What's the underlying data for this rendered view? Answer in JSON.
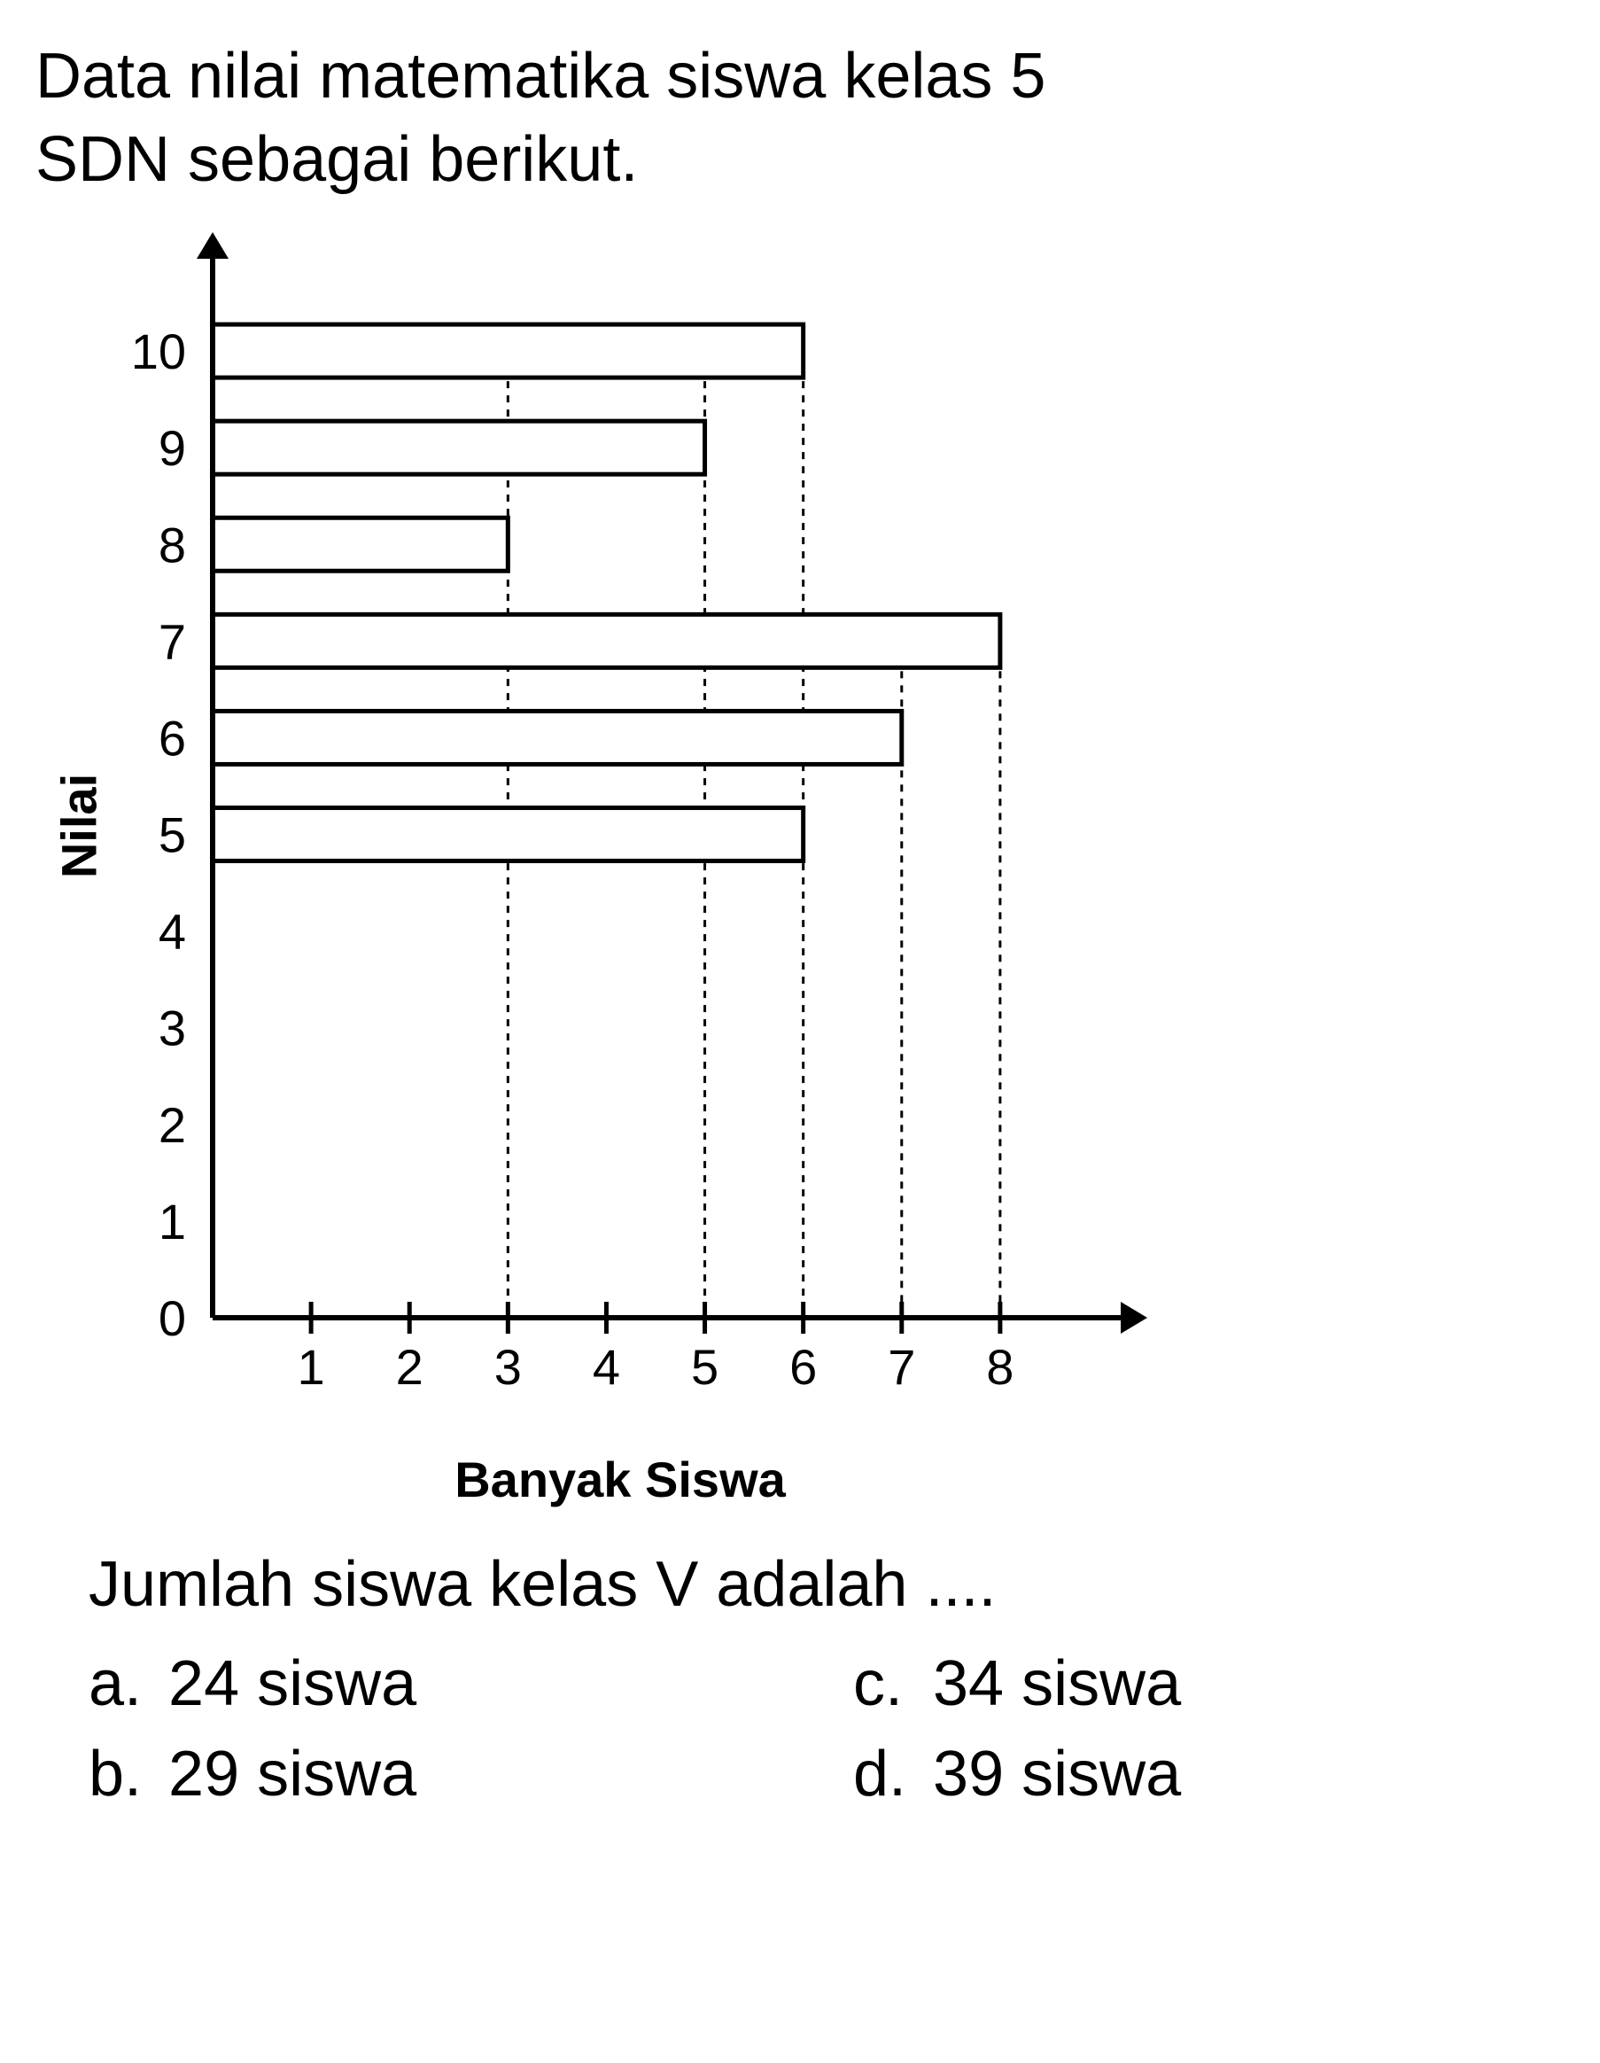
{
  "question": {
    "line1": "Data nilai matematika siswa kelas 5",
    "line2": "SDN sebagai berikut."
  },
  "chart": {
    "type": "bar",
    "orientation": "horizontal",
    "y_label": "Nilai",
    "x_label": "Banyak Siswa",
    "y_categories": [
      "0",
      "1",
      "2",
      "3",
      "4",
      "5",
      "6",
      "7",
      "8",
      "9",
      "10"
    ],
    "x_ticks": [
      "1",
      "2",
      "3",
      "4",
      "5",
      "6",
      "7",
      "8"
    ],
    "bars": [
      {
        "category": "5",
        "value": 6
      },
      {
        "category": "6",
        "value": 7
      },
      {
        "category": "7",
        "value": 8
      },
      {
        "category": "8",
        "value": 3
      },
      {
        "category": "9",
        "value": 5
      },
      {
        "category": "10",
        "value": 6
      }
    ],
    "guidelines_x": [
      3,
      5,
      6,
      7,
      8
    ],
    "bar_fill_color": "#ffffff",
    "bar_border_color": "#000000",
    "bar_border_width": 5,
    "axis_color": "#000000",
    "axis_width": 6,
    "guideline_color": "#000000",
    "guideline_dash": "8,8",
    "background_color": "#ffffff",
    "tick_font_size": 56,
    "label_font_size": 56,
    "bar_height_ratio": 0.55,
    "xlim": [
      0,
      9
    ],
    "ylim": [
      0,
      11
    ]
  },
  "sub_question": "Jumlah siswa kelas V adalah ....",
  "options": {
    "a": {
      "letter": "a.",
      "text": "24 siswa"
    },
    "b": {
      "letter": "b.",
      "text": "29 siswa"
    },
    "c": {
      "letter": "c.",
      "text": "34 siswa"
    },
    "d": {
      "letter": "d.",
      "text": "39 siswa"
    }
  }
}
